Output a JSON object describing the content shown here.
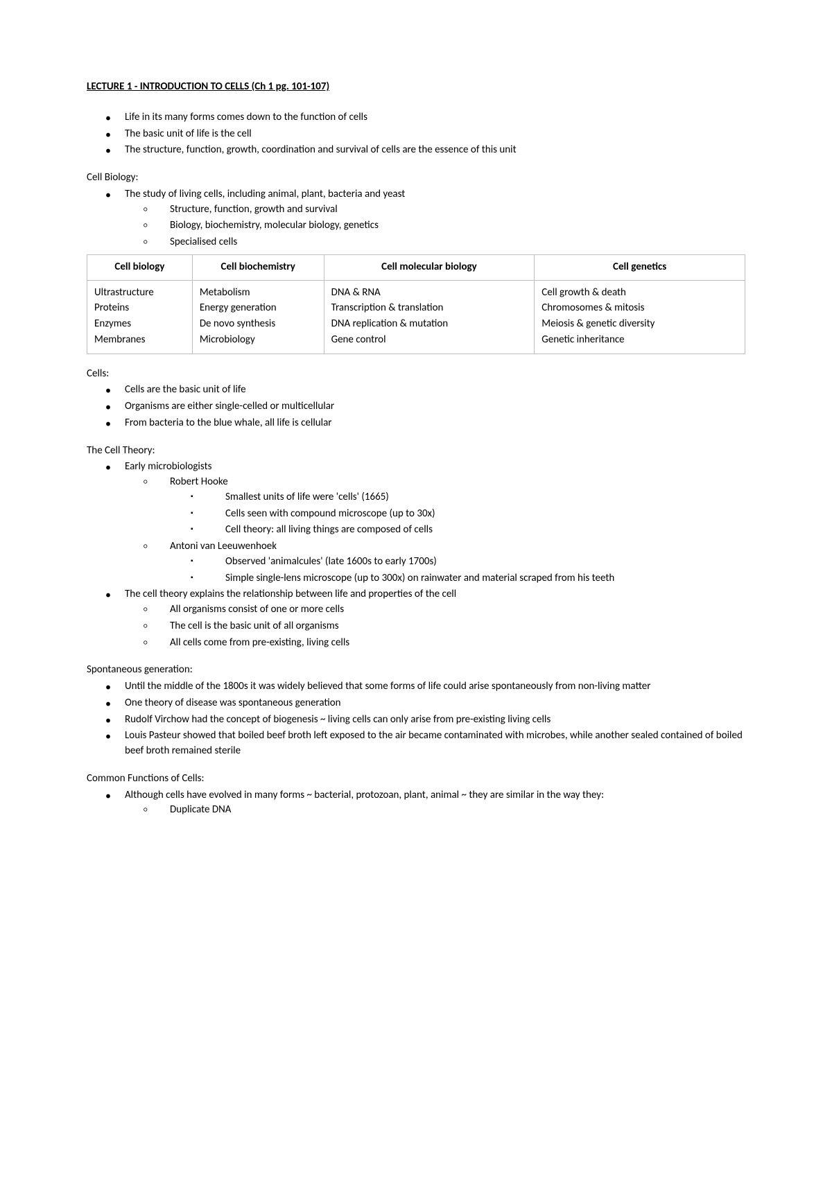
{
  "heading": "LECTURE 1 - INTRODUCTION TO CELLS (Ch 1 pg. 101-107)",
  "intro": {
    "items": [
      "Life in its many forms comes down to the function of cells",
      "The basic unit of life is the cell",
      "The structure, function, growth, coordination and survival of cells are the essence of this unit"
    ]
  },
  "cell_biology_section": {
    "label": "Cell Biology:",
    "item": "The study of living cells, including animal, plant, bacteria and yeast",
    "subitems": [
      "Structure, function, growth and survival",
      "Biology, biochemistry, molecular biology, genetics",
      "Specialised cells"
    ]
  },
  "table": {
    "headers": [
      "Cell biology",
      "Cell biochemistry",
      "Cell molecular biology",
      "Cell genetics"
    ],
    "col_widths": [
      "16%",
      "20%",
      "32%",
      "32%"
    ],
    "rows": [
      [
        "Ultrastructure",
        "Metabolism",
        "DNA & RNA",
        "Cell growth & death"
      ],
      [
        "Proteins",
        "Energy generation",
        "Transcription & translation",
        "Chromosomes & mitosis"
      ],
      [
        "Enzymes",
        "De novo synthesis",
        "DNA replication & mutation",
        "Meiosis & genetic diversity"
      ],
      [
        "Membranes",
        "Microbiology",
        "Gene control",
        "Genetic inheritance"
      ]
    ]
  },
  "cells_section": {
    "label": "Cells:",
    "items": [
      "Cells are the basic unit of life",
      "Organisms are either single-celled or multicellular",
      "From bacteria to the blue whale, all life is cellular"
    ]
  },
  "cell_theory_section": {
    "label": "The Cell Theory:",
    "bullet1": "Early microbiologists",
    "hooke_label": "Robert Hooke",
    "hooke_items": [
      "Smallest units of life were 'cells' (1665)",
      "Cells seen with compound microscope (up to 30x)",
      "Cell theory: all living things are composed of cells"
    ],
    "antoni_label": "Antoni van Leeuwenhoek",
    "antoni_items": [
      "Observed 'animalcules' (late 1600s to early 1700s)",
      "Simple single-lens microscope (up to 300x) on rainwater and material scraped from his teeth"
    ],
    "bullet2": "The cell theory explains the relationship between life and properties of the cell",
    "bullet2_subs": [
      "All organisms consist of one or more cells",
      "The cell is the basic unit of all organisms",
      "All cells come from pre-existing, living cells"
    ]
  },
  "spontaneous_section": {
    "label": "Spontaneous generation:",
    "items": [
      "Until the middle of the 1800s it was widely believed that some forms of life could arise spontaneously from non-living matter",
      "One theory of disease was spontaneous generation",
      "Rudolf Virchow had the concept of biogenesis ~ living cells can only arise from pre-existing living cells",
      "Louis Pasteur showed that boiled beef broth left exposed to the air became contaminated with microbes, while another sealed contained of boiled beef broth remained sterile"
    ]
  },
  "common_functions_section": {
    "label": "Common Functions of Cells:",
    "item": "Although cells have evolved in many forms ~ bacterial, protozoan, plant, animal ~ they are similar in the way they:",
    "subitems": [
      "Duplicate DNA"
    ]
  }
}
